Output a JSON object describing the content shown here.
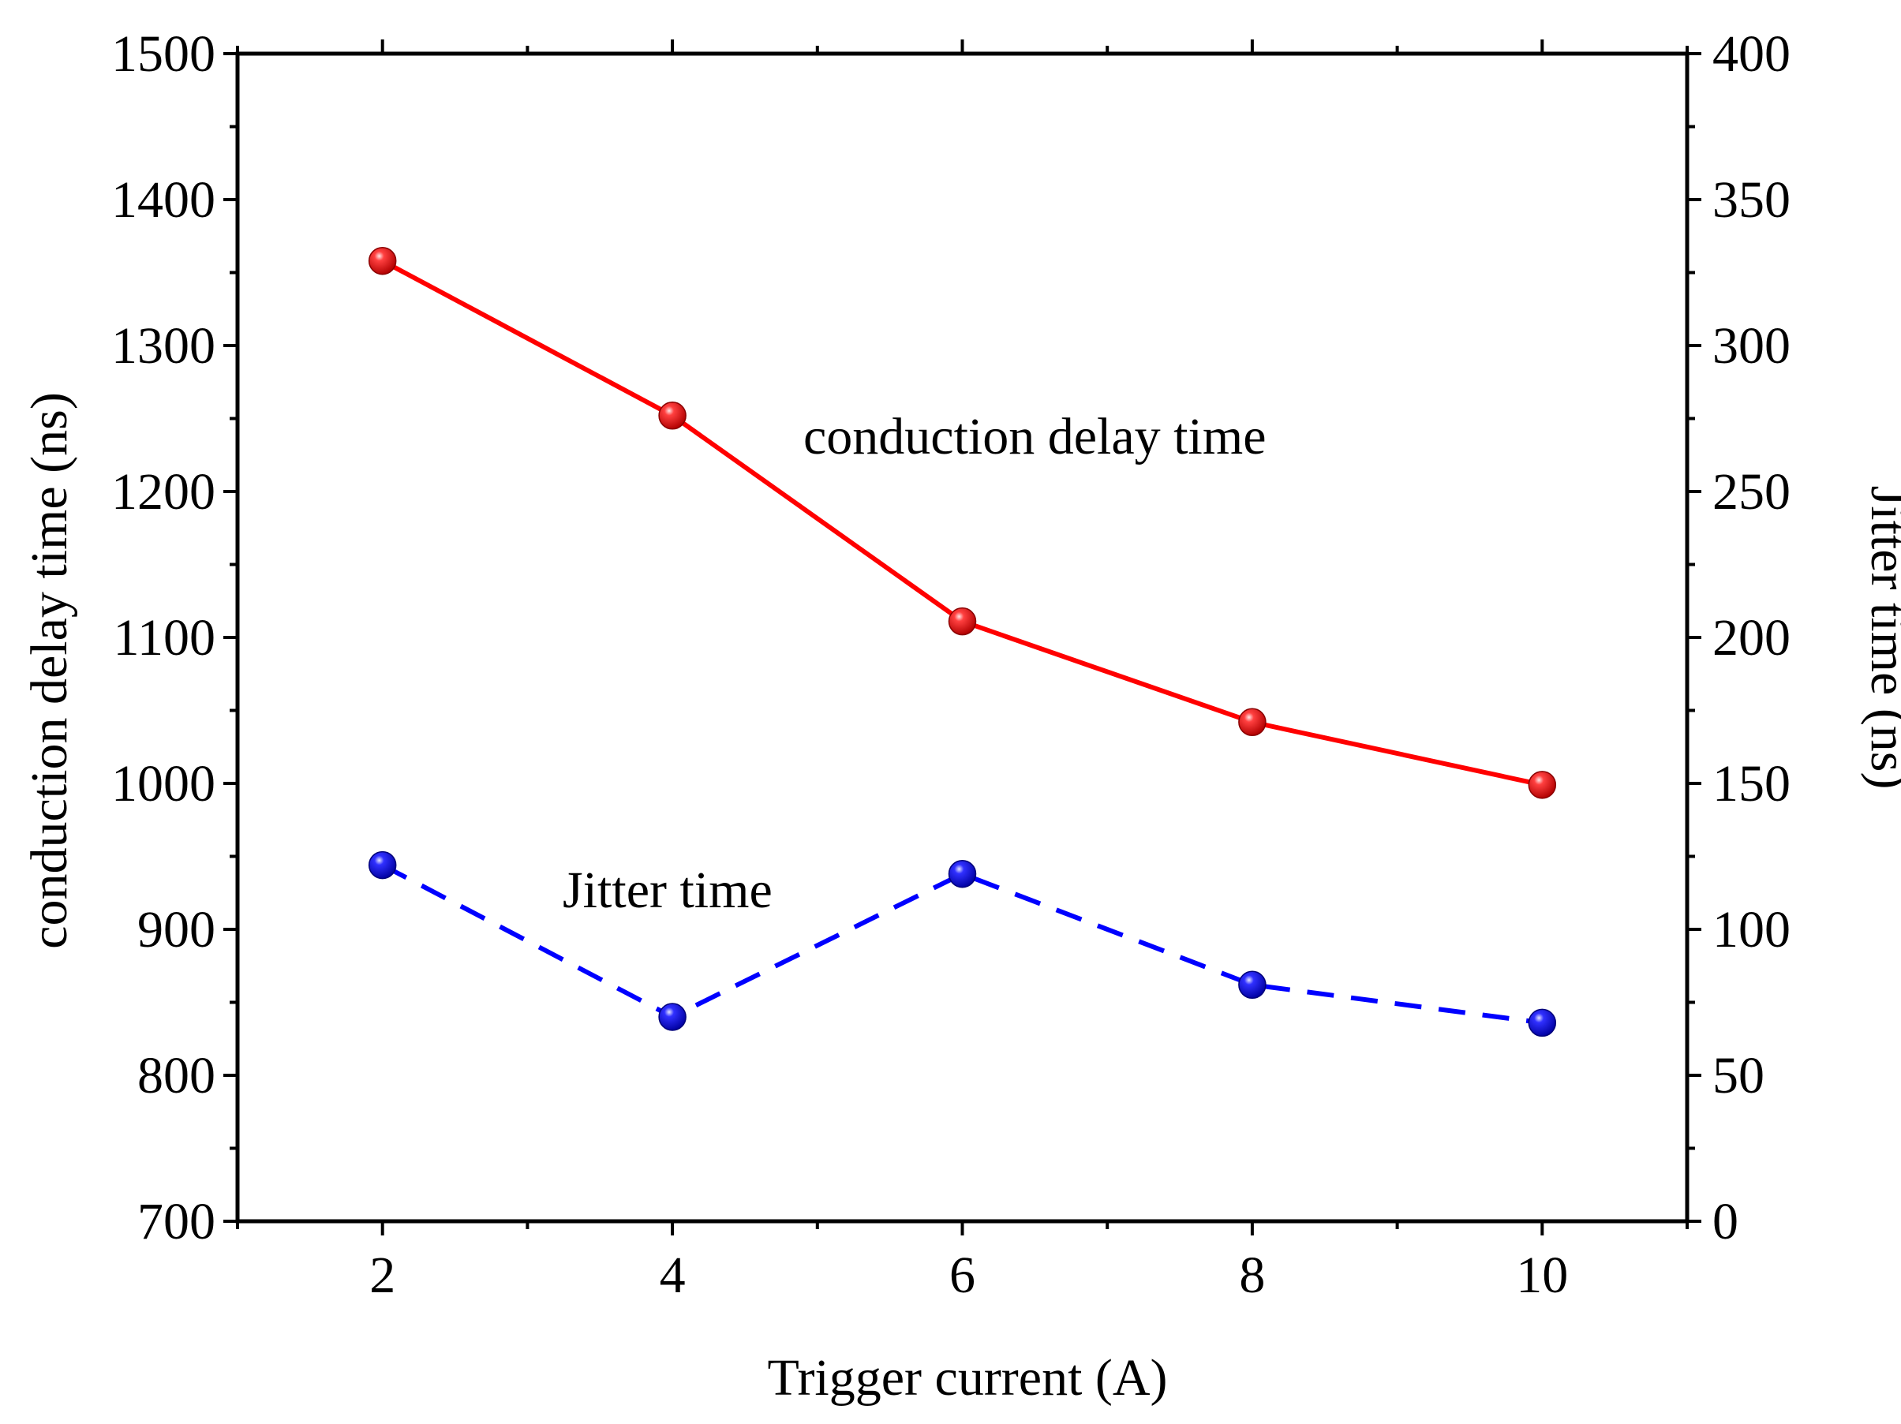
{
  "chart_data": {
    "type": "line",
    "title": "",
    "xlabel": "Trigger current (A)",
    "ylabel": "conduction delay time (ns)",
    "y2label": "Jitter time (ns)",
    "xlim": [
      1,
      11
    ],
    "ylim": [
      700,
      1500
    ],
    "y2lim": [
      0,
      400
    ],
    "x_ticks": [
      2,
      4,
      6,
      8,
      10
    ],
    "x_tick_labels": [
      "2",
      "4",
      "6",
      "8",
      "10"
    ],
    "y_ticks": [
      700,
      800,
      900,
      1000,
      1100,
      1200,
      1300,
      1400,
      1500
    ],
    "y_tick_labels": [
      "700",
      "800",
      "900",
      "1000",
      "1100",
      "1200",
      "1300",
      "1400",
      "1500"
    ],
    "y2_ticks": [
      0,
      50,
      100,
      150,
      200,
      250,
      300,
      350,
      400
    ],
    "y2_tick_labels": [
      "0",
      "50",
      "100",
      "150",
      "200",
      "250",
      "300",
      "350",
      "400"
    ],
    "grid": false,
    "legend": "none",
    "x": [
      2,
      4,
      6,
      8,
      10
    ],
    "series": [
      {
        "name": "conduction delay time",
        "axis": "left",
        "color": "#ff0000",
        "line_style": "solid",
        "values": [
          1358,
          1252,
          1111,
          1042,
          999
        ]
      },
      {
        "name": "Jitter time",
        "axis": "right",
        "color": "#0000ff",
        "line_style": "dashed",
        "values": [
          122,
          70,
          119,
          81,
          68
        ]
      }
    ],
    "annotations": [
      {
        "text": "conduction delay time",
        "series": "conduction delay time"
      },
      {
        "text": "Jitter time",
        "series": "Jitter time"
      }
    ]
  }
}
